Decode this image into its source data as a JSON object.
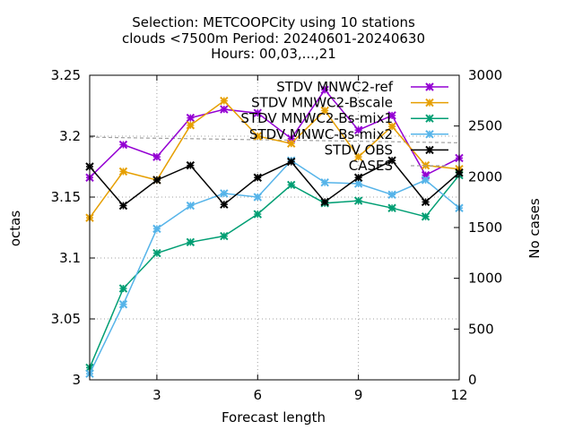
{
  "chart_data": {
    "type": "line",
    "title_lines": [
      "Selection: METCOOPCity using    10 stations",
      "clouds <7500m   Period: 20240601-20240630",
      "Hours: 00,03,...,21"
    ],
    "xlabel": "Forecast length",
    "ylabel": "octas",
    "y2label": "No cases",
    "xlim": [
      1,
      12
    ],
    "ylim": [
      3,
      3.25
    ],
    "y2lim": [
      0,
      3000
    ],
    "xticks": [
      3,
      6,
      9,
      12
    ],
    "yticks": [
      3,
      3.05,
      3.1,
      3.15,
      3.2,
      3.25
    ],
    "y2ticks": [
      0,
      500,
      1000,
      1500,
      2000,
      2500,
      3000
    ],
    "grid": true,
    "legend_position": "top-right",
    "x": [
      1,
      2,
      3,
      4,
      5,
      6,
      7,
      8,
      9,
      10,
      11,
      12
    ],
    "series": [
      {
        "name": "STDV MNWC2-ref",
        "color": "#9400d3",
        "axis": "y",
        "marker": "x",
        "values": [
          3.166,
          3.193,
          3.183,
          3.215,
          3.222,
          3.219,
          3.198,
          3.238,
          3.205,
          3.217,
          3.168,
          3.182
        ]
      },
      {
        "name": "STDV MNWC2-Bscale",
        "color": "#e69f00",
        "axis": "y",
        "marker": "x",
        "values": [
          3.133,
          3.171,
          3.164,
          3.209,
          3.229,
          3.2,
          3.194,
          3.221,
          3.183,
          3.208,
          3.176,
          3.173
        ]
      },
      {
        "name": "STDV MNWC2-Bs-mix1",
        "color": "#009e73",
        "axis": "y",
        "marker": "x",
        "values": [
          3.01,
          3.075,
          3.104,
          3.113,
          3.118,
          3.136,
          3.16,
          3.145,
          3.147,
          3.141,
          3.134,
          3.168
        ]
      },
      {
        "name": "STDV MNWC-Bs-mix2",
        "color": "#56b4e9",
        "axis": "y",
        "marker": "x",
        "values": [
          3.005,
          3.062,
          3.124,
          3.143,
          3.153,
          3.15,
          3.18,
          3.162,
          3.161,
          3.152,
          3.164,
          3.141
        ]
      },
      {
        "name": "STDV OBS",
        "color": "#000000",
        "axis": "y",
        "marker": "x",
        "values": [
          3.175,
          3.143,
          3.164,
          3.176,
          3.144,
          3.166,
          3.179,
          3.146,
          3.166,
          3.18,
          3.146,
          3.17
        ]
      },
      {
        "name": "CASES",
        "color": "#a0a0a0",
        "axis": "y2",
        "marker": "none",
        "dash": true,
        "values": [
          2390,
          2385,
          2380,
          2375,
          2370,
          2365,
          2360,
          2355,
          2350,
          2345,
          2340,
          2335
        ]
      }
    ]
  }
}
